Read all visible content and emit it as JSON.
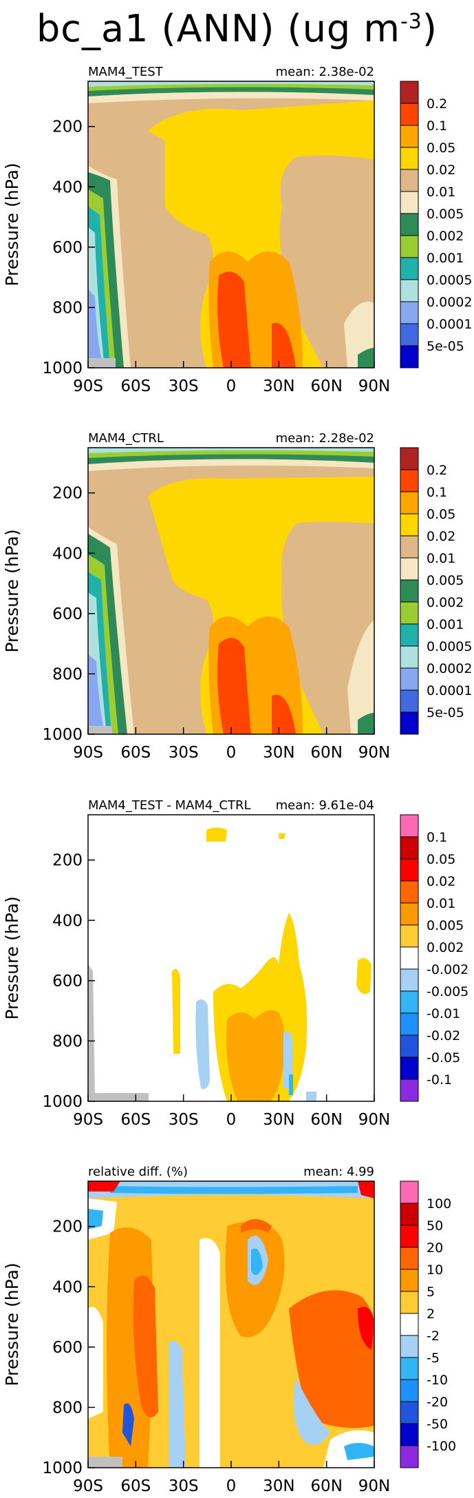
{
  "page": {
    "title": "bc_a1 (ANN) (ug m",
    "title_exp": "-3"
  },
  "chart_data": [
    {
      "type": "contour",
      "label_left": "MAM4_TEST",
      "label_right": "mean: 2.38e-02",
      "ylabel": "Pressure (hPa)",
      "x_ticks": [
        "90S",
        "60S",
        "30S",
        "0",
        "30N",
        "60N",
        "90N"
      ],
      "y_ticks": [
        "200",
        "400",
        "600",
        "800",
        "1000"
      ],
      "y_tick_values": [
        200,
        400,
        600,
        800,
        1000
      ],
      "ylim": [
        1000,
        50
      ],
      "colorbar_labels": [
        "0.2",
        "0.1",
        "0.05",
        "0.02",
        "0.01",
        "0.005",
        "0.002",
        "0.001",
        "0.0005",
        "0.0002",
        "0.0001",
        "5e-05"
      ],
      "colorbar_colors": [
        "#b22222",
        "#ff4500",
        "#ffa500",
        "#ffd700",
        "#deb887",
        "#f5e6c4",
        "#2e8b57",
        "#9acd32",
        "#20b2aa",
        "#afe0e0",
        "#87a8f0",
        "#4169e1",
        "#0000cd"
      ]
    },
    {
      "type": "contour",
      "label_left": "MAM4_CTRL",
      "label_right": "mean: 2.28e-02",
      "ylabel": "Pressure (hPa)",
      "x_ticks": [
        "90S",
        "60S",
        "30S",
        "0",
        "30N",
        "60N",
        "90N"
      ],
      "y_ticks": [
        "200",
        "400",
        "600",
        "800",
        "1000"
      ],
      "y_tick_values": [
        200,
        400,
        600,
        800,
        1000
      ],
      "ylim": [
        1000,
        50
      ],
      "colorbar_labels": [
        "0.2",
        "0.1",
        "0.05",
        "0.02",
        "0.01",
        "0.005",
        "0.002",
        "0.001",
        "0.0005",
        "0.0002",
        "0.0001",
        "5e-05"
      ],
      "colorbar_colors": [
        "#b22222",
        "#ff4500",
        "#ffa500",
        "#ffd700",
        "#deb887",
        "#f5e6c4",
        "#2e8b57",
        "#9acd32",
        "#20b2aa",
        "#afe0e0",
        "#87a8f0",
        "#4169e1",
        "#0000cd"
      ]
    },
    {
      "type": "contour",
      "label_left": "MAM4_TEST - MAM4_CTRL",
      "label_right": "mean: 9.61e-04",
      "ylabel": "Pressure (hPa)",
      "x_ticks": [
        "90S",
        "60S",
        "30S",
        "0",
        "30N",
        "60N",
        "90N"
      ],
      "y_ticks": [
        "200",
        "400",
        "600",
        "800",
        "1000"
      ],
      "y_tick_values": [
        200,
        400,
        600,
        800,
        1000
      ],
      "ylim": [
        1000,
        50
      ],
      "colorbar_labels": [
        "0.1",
        "0.05",
        "0.02",
        "0.01",
        "0.005",
        "0.002",
        "-0.002",
        "-0.005",
        "-0.01",
        "-0.02",
        "-0.05",
        "-0.1"
      ],
      "colorbar_colors": [
        "#ff69b4",
        "#cc0000",
        "#ff0000",
        "#ff6600",
        "#ff9900",
        "#ffcc33",
        "#ffffff",
        "#a6d1f5",
        "#33b5f5",
        "#1e90ff",
        "#2255dd",
        "#0000cc",
        "#8a2be2"
      ]
    },
    {
      "type": "contour",
      "label_left": "relative diff. (%)",
      "label_right": "mean: 4.99",
      "ylabel": "Pressure (hPa)",
      "x_ticks": [
        "90S",
        "60S",
        "30S",
        "0",
        "30N",
        "60N",
        "90N"
      ],
      "y_ticks": [
        "200",
        "400",
        "600",
        "800",
        "1000"
      ],
      "y_tick_values": [
        200,
        400,
        600,
        800,
        1000
      ],
      "ylim": [
        1000,
        50
      ],
      "colorbar_labels": [
        "100",
        "50",
        "20",
        "10",
        "5",
        "2",
        "-2",
        "-5",
        "-10",
        "-20",
        "-50",
        "-100"
      ],
      "colorbar_colors": [
        "#ff69b4",
        "#cc0000",
        "#ff0000",
        "#ff6600",
        "#ff9900",
        "#ffcc33",
        "#ffffff",
        "#a6d1f5",
        "#33b5f5",
        "#1e90ff",
        "#2255dd",
        "#0000cc",
        "#8a2be2"
      ]
    }
  ]
}
